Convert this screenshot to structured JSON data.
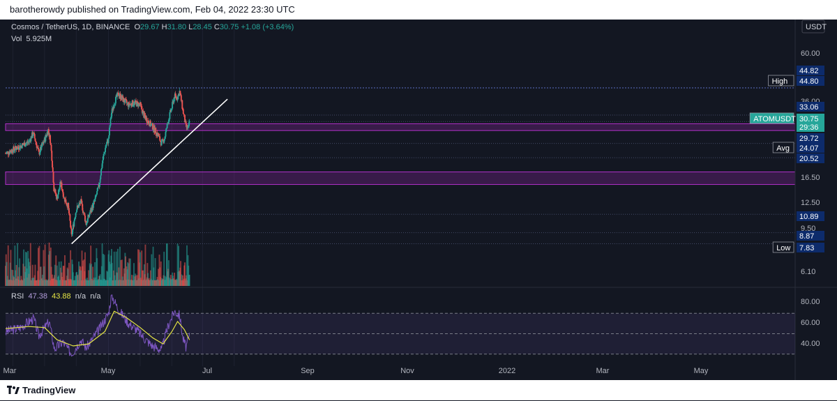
{
  "header": {
    "published": "barotherowdy published on TradingView.com, Feb 04, 2022 23:30 UTC"
  },
  "legend": {
    "symbol": "Cosmos / TetherUS, 1D, BINANCE",
    "o_label": "O",
    "o": "29.67",
    "h_label": "H",
    "h": "31.80",
    "l_label": "L",
    "l": "28.45",
    "c_label": "C",
    "c": "30.75",
    "change": "+1.08 (+3.64%)",
    "vol_label": "Vol",
    "vol": "5.925M"
  },
  "rsi_legend": {
    "label": "RSI",
    "v1": "47.38",
    "v2": "43.88",
    "v3": "n/a",
    "v4": "n/a"
  },
  "currency": "USDT",
  "footer": {
    "brand": "TradingView"
  },
  "colors": {
    "up": "#26a69a",
    "down": "#ef5350",
    "zone": "#9c27b0",
    "badge": "#0d2b6b",
    "rsi": "#7e57c2",
    "rsi_ma": "#e5e545"
  },
  "chart_data": {
    "type": "candlestick",
    "symbol": "ATOMUSDT",
    "x_ticks": [
      "Mar",
      "May",
      "Jul",
      "Sep",
      "Nov",
      "2022",
      "Mar",
      "May"
    ],
    "y_ticks": [
      "60.00",
      "36.00",
      "16.50",
      "12.50",
      "9.50",
      "6.10"
    ],
    "price_labels": [
      {
        "label": "",
        "value": "44.82",
        "price": 44.82
      },
      {
        "label": "High",
        "value": "44.80",
        "price": 44.8
      },
      {
        "label": "",
        "value": "33.06",
        "price": 33.06
      },
      {
        "label": "ATOMUSDT",
        "value": "30.75",
        "price": 30.75
      },
      {
        "label": "",
        "value": "29:36",
        "price": 29.5
      },
      {
        "label": "",
        "value": "29.72",
        "price": 27.8
      },
      {
        "label": "Avg",
        "value": "24.07",
        "price": 24.07
      },
      {
        "label": "",
        "value": "20.52",
        "price": 20.52
      },
      {
        "label": "",
        "value": "10.89",
        "price": 10.89
      },
      {
        "label": "",
        "value": "8.87",
        "price": 8.87
      },
      {
        "label": "Low",
        "value": "7.83",
        "price": 7.83
      }
    ],
    "zones": [
      {
        "from": 27.8,
        "to": 30.0
      },
      {
        "from": 15.2,
        "to": 17.5
      }
    ],
    "horizontal_lines": [
      44.8,
      33.06,
      30.75,
      24.07,
      20.52,
      10.89,
      8.87,
      7.83
    ],
    "trendline": {
      "start": {
        "date": "2021-06-22",
        "price": 7.83
      },
      "end": {
        "date": "2022-04-18",
        "price": 39.5
      }
    },
    "keypoints": [
      [
        "2021-02-15",
        21.5
      ],
      [
        "2021-03-10",
        23.0
      ],
      [
        "2021-04-01",
        24.5
      ],
      [
        "2021-04-09",
        27.0
      ],
      [
        "2021-04-20",
        21.5
      ],
      [
        "2021-05-01",
        25.0
      ],
      [
        "2021-05-08",
        28.0
      ],
      [
        "2021-05-12",
        25.0
      ],
      [
        "2021-05-19",
        14.5
      ],
      [
        "2021-05-25",
        13.0
      ],
      [
        "2021-06-01",
        15.5
      ],
      [
        "2021-06-08",
        13.0
      ],
      [
        "2021-06-15",
        12.0
      ],
      [
        "2021-06-22",
        8.5
      ],
      [
        "2021-07-01",
        11.5
      ],
      [
        "2021-07-10",
        12.5
      ],
      [
        "2021-07-20",
        9.8
      ],
      [
        "2021-07-27",
        11.0
      ],
      [
        "2021-08-05",
        12.5
      ],
      [
        "2021-08-14",
        15.0
      ],
      [
        "2021-08-21",
        20.0
      ],
      [
        "2021-08-28",
        24.0
      ],
      [
        "2021-09-01",
        25.0
      ],
      [
        "2021-09-07",
        34.0
      ],
      [
        "2021-09-13",
        38.5
      ],
      [
        "2021-09-20",
        42.0
      ],
      [
        "2021-09-30",
        39.0
      ],
      [
        "2021-10-10",
        37.0
      ],
      [
        "2021-10-20",
        38.0
      ],
      [
        "2021-11-01",
        37.0
      ],
      [
        "2021-11-08",
        33.0
      ],
      [
        "2021-11-15",
        31.0
      ],
      [
        "2021-11-25",
        29.0
      ],
      [
        "2021-12-05",
        26.5
      ],
      [
        "2021-12-12",
        24.0
      ],
      [
        "2021-12-18",
        25.5
      ],
      [
        "2021-12-25",
        31.0
      ],
      [
        "2022-01-01",
        36.0
      ],
      [
        "2022-01-06",
        41.0
      ],
      [
        "2022-01-11",
        40.0
      ],
      [
        "2022-01-16",
        43.0
      ],
      [
        "2022-01-22",
        35.0
      ],
      [
        "2022-01-28",
        29.0
      ],
      [
        "2022-02-02",
        28.5
      ],
      [
        "2022-02-04",
        30.75
      ]
    ],
    "rsi": {
      "y_ticks": [
        "80.00",
        "60.00",
        "40.00"
      ],
      "bands": [
        70,
        50,
        30
      ],
      "range": [
        25,
        90
      ],
      "keypoints": [
        [
          "2021-02-15",
          52
        ],
        [
          "2021-03-15",
          56
        ],
        [
          "2021-04-10",
          65
        ],
        [
          "2021-04-20",
          48
        ],
        [
          "2021-05-10",
          62
        ],
        [
          "2021-05-20",
          35
        ],
        [
          "2021-06-05",
          42
        ],
        [
          "2021-06-22",
          30
        ],
        [
          "2021-07-10",
          44
        ],
        [
          "2021-07-20",
          36
        ],
        [
          "2021-08-15",
          55
        ],
        [
          "2021-09-01",
          70
        ],
        [
          "2021-09-07",
          88
        ],
        [
          "2021-09-20",
          74
        ],
        [
          "2021-10-10",
          60
        ],
        [
          "2021-10-25",
          54
        ],
        [
          "2021-11-10",
          45
        ],
        [
          "2021-11-25",
          38
        ],
        [
          "2021-12-12",
          34
        ],
        [
          "2021-12-25",
          58
        ],
        [
          "2022-01-06",
          72
        ],
        [
          "2022-01-16",
          68
        ],
        [
          "2022-01-22",
          46
        ],
        [
          "2022-01-28",
          37
        ],
        [
          "2022-02-04",
          47.38
        ]
      ],
      "ma_keypoints": [
        [
          "2021-02-15",
          55
        ],
        [
          "2021-04-01",
          57
        ],
        [
          "2021-05-01",
          56
        ],
        [
          "2021-05-25",
          44
        ],
        [
          "2021-06-25",
          38
        ],
        [
          "2021-07-25",
          40
        ],
        [
          "2021-08-25",
          52
        ],
        [
          "2021-09-12",
          72
        ],
        [
          "2021-10-05",
          66
        ],
        [
          "2021-11-01",
          56
        ],
        [
          "2021-11-25",
          46
        ],
        [
          "2021-12-15",
          40
        ],
        [
          "2022-01-01",
          52
        ],
        [
          "2022-01-12",
          62
        ],
        [
          "2022-01-25",
          54
        ],
        [
          "2022-02-04",
          43.88
        ]
      ]
    }
  }
}
